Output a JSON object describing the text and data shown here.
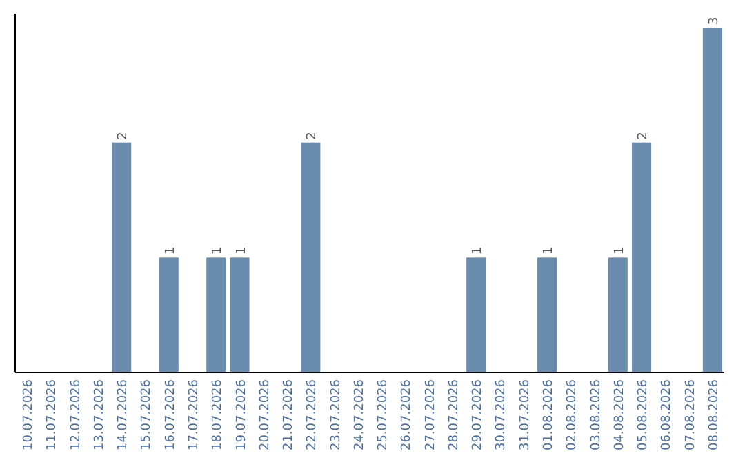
{
  "chart_data": {
    "type": "bar",
    "categories": [
      "10.07.2026",
      "11.07.2026",
      "12.07.2026",
      "13.07.2026",
      "14.07.2026",
      "15.07.2026",
      "16.07.2026",
      "17.07.2026",
      "18.07.2026",
      "19.07.2026",
      "20.07.2026",
      "21.07.2026",
      "22.07.2026",
      "23.07.2026",
      "24.07.2026",
      "25.07.2026",
      "26.07.2026",
      "27.07.2026",
      "28.07.2026",
      "29.07.2026",
      "30.07.2026",
      "31.07.2026",
      "01.08.2026",
      "02.08.2026",
      "03.08.2026",
      "04.08.2026",
      "05.08.2026",
      "06.08.2026",
      "07.08.2026",
      "08.08.2026"
    ],
    "values": [
      0,
      0,
      0,
      0,
      2,
      0,
      1,
      0,
      1,
      1,
      0,
      0,
      2,
      0,
      0,
      0,
      0,
      0,
      0,
      1,
      0,
      0,
      1,
      0,
      0,
      1,
      2,
      0,
      0,
      3
    ],
    "value_labels": [
      null,
      null,
      null,
      null,
      "2",
      null,
      "1",
      null,
      "1",
      "1",
      null,
      null,
      "2",
      null,
      null,
      null,
      null,
      null,
      null,
      "1",
      null,
      null,
      "1",
      null,
      null,
      "1",
      "2",
      null,
      null,
      "3"
    ],
    "color": "#6a8caf"
  }
}
